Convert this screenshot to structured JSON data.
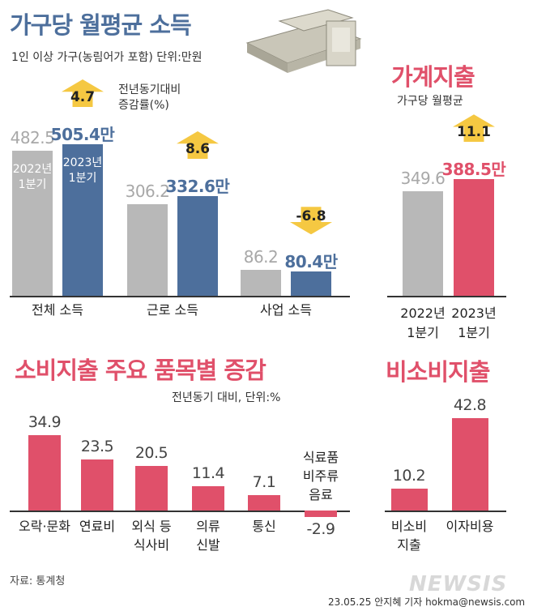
{
  "chart_data": [
    {
      "type": "bar",
      "title": "가구당 월평균 소득",
      "subtitle": "1인 이상 가구(농림어가 포함) 단위:만원",
      "note": [
        "전년동기대비",
        "증감률(%)"
      ],
      "categories": [
        "전체 소득",
        "근로 소득",
        "사업 소득"
      ],
      "series": [
        {
          "name": [
            "2022년",
            "1분기"
          ],
          "color": "#b8b8b8",
          "values": [
            482.5,
            306.2,
            86.2
          ]
        },
        {
          "name": [
            "2023년",
            "1분기"
          ],
          "color": "#4d6f9c",
          "values": [
            505.4,
            332.6,
            80.4
          ],
          "value_labels": [
            "505.4만",
            "332.6만",
            "80.4만"
          ]
        }
      ],
      "changes": [
        4.7,
        8.6,
        -6.8
      ],
      "change_color": "#f5c842"
    },
    {
      "type": "bar",
      "title": "가계지출",
      "subtitle": "가구당 월평균",
      "categories": [
        [
          "2022년",
          "1분기"
        ],
        [
          "2023년",
          "1분기"
        ]
      ],
      "values": [
        349.6,
        388.5
      ],
      "value_labels": [
        "349.6",
        "388.5만"
      ],
      "colors": [
        "#b8b8b8",
        "#e0506a"
      ],
      "change": 11.1,
      "change_color": "#f5c842"
    },
    {
      "type": "bar",
      "title": "소비지출 주요 품목별 증감",
      "subtitle": "전년동기 대비, 단위:%",
      "categories": [
        [
          "오락·문화"
        ],
        [
          "연료비"
        ],
        [
          "외식 등",
          "식사비"
        ],
        [
          "의류",
          "신발"
        ],
        [
          "통신"
        ],
        [
          "식료품",
          "비주류",
          "음료"
        ]
      ],
      "values": [
        34.9,
        23.5,
        20.5,
        11.4,
        7.1,
        -2.9
      ],
      "color": "#e0506a"
    },
    {
      "type": "bar",
      "title": "비소비지출",
      "categories": [
        [
          "비소비",
          "지출"
        ],
        [
          "이자비용"
        ]
      ],
      "values": [
        10.2,
        42.8
      ],
      "color": "#e0506a"
    }
  ],
  "source": "자료: 통계청",
  "watermark": "NEWSIS",
  "credit": "23.05.25 안지혜 기자 hokma@newsis.com"
}
